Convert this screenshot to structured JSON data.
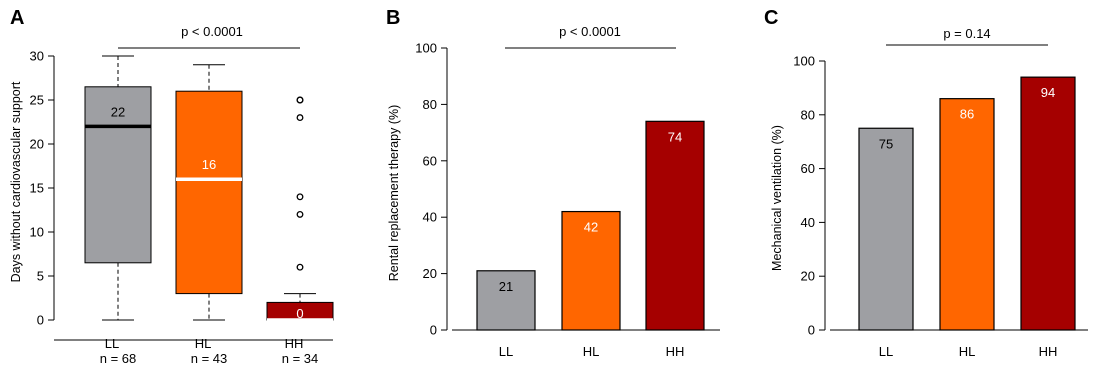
{
  "colors": {
    "LL": "#9e9fa3",
    "HL": "#ff6600",
    "HH": "#a50000",
    "median_LL": "#000000",
    "median_HL": "#ffffff",
    "median_HH": "#ffffff"
  },
  "chart_data": [
    {
      "panel": "A",
      "type": "box",
      "ylabel": "Days without cardiovascular support",
      "ylim": [
        0,
        30
      ],
      "yticks": [
        "0",
        "5",
        "10",
        "15",
        "20",
        "25",
        "30"
      ],
      "categories": [
        "LL",
        "HL",
        "HH"
      ],
      "sublabels": [
        "n = 68",
        "n = 43",
        "n = 34"
      ],
      "boxes": [
        {
          "name": "LL",
          "min": 0,
          "q1": 6.5,
          "median": 22,
          "q3": 26.5,
          "max": 30,
          "outliers": [],
          "label": "22"
        },
        {
          "name": "HL",
          "min": 0,
          "q1": 3,
          "median": 16,
          "q3": 26,
          "max": 29,
          "outliers": [],
          "label": "16"
        },
        {
          "name": "HH",
          "min": 0,
          "q1": 0,
          "median": 0,
          "q3": 2,
          "max": 3,
          "outliers": [
            6,
            12,
            14,
            23,
            25,
            25
          ],
          "label": "0"
        }
      ],
      "pvalue": "p < 0.0001"
    },
    {
      "panel": "B",
      "type": "bar",
      "ylabel": "Rental replacement therapy (%)",
      "ylim": [
        0,
        100
      ],
      "yticks": [
        "0",
        "20",
        "40",
        "60",
        "80",
        "100"
      ],
      "categories": [
        "LL",
        "HL",
        "HH"
      ],
      "values": [
        21,
        42,
        74
      ],
      "labels": [
        "21",
        "42",
        "74"
      ],
      "pvalue": "p < 0.0001"
    },
    {
      "panel": "C",
      "type": "bar",
      "ylabel": "Mechanical ventilation (%)",
      "ylim": [
        0,
        100
      ],
      "yticks": [
        "0",
        "20",
        "40",
        "60",
        "80",
        "100"
      ],
      "categories": [
        "LL",
        "HL",
        "HH"
      ],
      "values": [
        75,
        86,
        94
      ],
      "labels": [
        "75",
        "86",
        "94"
      ],
      "pvalue": "p = 0.14"
    }
  ]
}
